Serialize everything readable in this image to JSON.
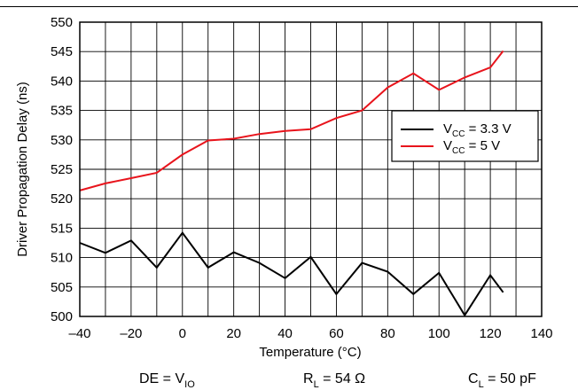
{
  "colors": {
    "vcc33": "#000000",
    "vcc5": "#e8141c",
    "grid": "#000000"
  },
  "chart_data": {
    "type": "line",
    "title": "",
    "xlabel": "Temperature (°C)",
    "ylabel": "Driver Propagation Delay (ns)",
    "xlim": [
      -40,
      140
    ],
    "ylim": [
      500,
      550
    ],
    "x_ticks": [
      -40,
      -20,
      0,
      20,
      40,
      60,
      80,
      100,
      120,
      140
    ],
    "x_grid": [
      -40,
      -30,
      -20,
      -10,
      0,
      10,
      20,
      30,
      40,
      50,
      60,
      70,
      80,
      90,
      100,
      110,
      120,
      130,
      140
    ],
    "y_ticks": [
      500,
      505,
      510,
      515,
      520,
      525,
      530,
      535,
      540,
      545,
      550
    ],
    "grid": true,
    "legend_position": "right",
    "series": [
      {
        "name": "VCC = 3.3 V",
        "name_main": "V",
        "name_sub": "CC",
        "name_rest": " = 3.3 V",
        "color": "#000000",
        "x": [
          -40,
          -30,
          -20,
          -10,
          0,
          10,
          20,
          30,
          40,
          50,
          60,
          70,
          80,
          90,
          100,
          110,
          120,
          125
        ],
        "y": [
          512.5,
          510.8,
          512.9,
          508.3,
          514.2,
          508.3,
          510.9,
          509.1,
          506.5,
          510.1,
          503.8,
          509.1,
          507.6,
          503.8,
          507.4,
          500.2,
          507.0,
          504.1
        ]
      },
      {
        "name": "VCC = 5 V",
        "name_main": "V",
        "name_sub": "CC",
        "name_rest": " = 5 V",
        "color": "#e8141c",
        "x": [
          -40,
          -30,
          -20,
          -10,
          0,
          10,
          20,
          30,
          40,
          50,
          60,
          70,
          80,
          90,
          100,
          110,
          120,
          125
        ],
        "y": [
          521.4,
          522.6,
          523.5,
          524.4,
          527.5,
          529.9,
          530.2,
          531.0,
          531.5,
          531.8,
          533.7,
          535.0,
          538.9,
          541.3,
          538.5,
          540.6,
          542.3,
          545.1
        ]
      }
    ],
    "conditions": [
      {
        "main": "DE = V",
        "sub": "IO",
        "rest": ""
      },
      {
        "main": "R",
        "sub": "L",
        "rest": " = 54 Ω"
      },
      {
        "main": "C",
        "sub": "L",
        "rest": " = 50 pF"
      }
    ]
  }
}
